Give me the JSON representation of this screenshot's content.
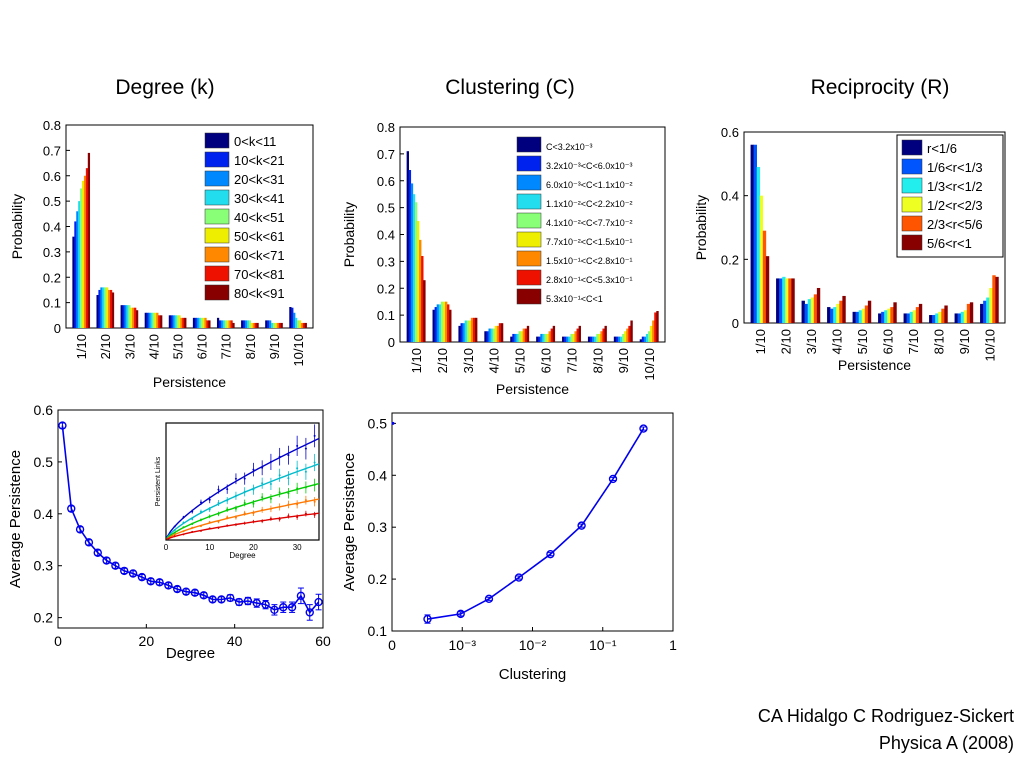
{
  "titles": {
    "degree": "Degree (k)",
    "clustering": "Clustering (C)",
    "reciprocity": "Reciprocity (R)"
  },
  "credit": {
    "line1": "CA Hidalgo C Rodriguez-Sickert",
    "line2": "Physica A (2008)"
  },
  "chart_data": [
    {
      "id": "degree_hist",
      "type": "bar",
      "xlabel": "Persistence",
      "ylabel": "Probability",
      "ylim": [
        0,
        0.8
      ],
      "yticks": [
        "0",
        "0.1",
        "0.2",
        "0.3",
        "0.4",
        "0.5",
        "0.6",
        "0.7",
        "0.8"
      ],
      "categories": [
        "1/10",
        "2/10",
        "3/10",
        "4/10",
        "5/10",
        "6/10",
        "7/10",
        "8/10",
        "9/10",
        "10/10"
      ],
      "legend_position": "top-right",
      "series": [
        {
          "name": "0<k<11",
          "color": "#00007f",
          "values": [
            0.36,
            0.13,
            0.09,
            0.06,
            0.05,
            0.04,
            0.04,
            0.03,
            0.03,
            0.11
          ]
        },
        {
          "name": "10<k<21",
          "color": "#0022ee",
          "values": [
            0.42,
            0.15,
            0.09,
            0.06,
            0.05,
            0.04,
            0.03,
            0.03,
            0.03,
            0.08
          ]
        },
        {
          "name": "20<k<31",
          "color": "#0088ff",
          "values": [
            0.46,
            0.16,
            0.09,
            0.06,
            0.05,
            0.04,
            0.03,
            0.03,
            0.03,
            0.06
          ]
        },
        {
          "name": "30<k<41",
          "color": "#22ddee",
          "values": [
            0.5,
            0.16,
            0.09,
            0.06,
            0.05,
            0.04,
            0.03,
            0.03,
            0.02,
            0.04
          ]
        },
        {
          "name": "40<k<51",
          "color": "#88ff77",
          "values": [
            0.55,
            0.16,
            0.09,
            0.06,
            0.05,
            0.04,
            0.03,
            0.03,
            0.02,
            0.03
          ]
        },
        {
          "name": "50<k<61",
          "color": "#eeee00",
          "values": [
            0.58,
            0.16,
            0.08,
            0.06,
            0.05,
            0.04,
            0.03,
            0.02,
            0.02,
            0.03
          ]
        },
        {
          "name": "60<k<71",
          "color": "#ff8800",
          "values": [
            0.6,
            0.15,
            0.08,
            0.06,
            0.04,
            0.04,
            0.03,
            0.02,
            0.02,
            0.02
          ]
        },
        {
          "name": "70<k<81",
          "color": "#ee1100",
          "values": [
            0.63,
            0.15,
            0.08,
            0.05,
            0.04,
            0.03,
            0.03,
            0.02,
            0.02,
            0.02
          ]
        },
        {
          "name": "80<k<91",
          "color": "#880000",
          "values": [
            0.69,
            0.14,
            0.07,
            0.05,
            0.04,
            0.03,
            0.02,
            0.02,
            0.02,
            0.02
          ]
        }
      ]
    },
    {
      "id": "clustering_hist",
      "type": "bar",
      "xlabel": "Persistence",
      "ylabel": "Probability",
      "ylim": [
        0,
        0.8
      ],
      "yticks": [
        "0",
        "0.1",
        "0.2",
        "0.3",
        "0.4",
        "0.5",
        "0.6",
        "0.7",
        "0.8"
      ],
      "categories": [
        "1/10",
        "2/10",
        "3/10",
        "4/10",
        "5/10",
        "6/10",
        "7/10",
        "8/10",
        "9/10",
        "10/10"
      ],
      "legend_position": "top-right",
      "series": [
        {
          "name": "C<3.2x10⁻³",
          "color": "#00007f",
          "values": [
            0.71,
            0.12,
            0.06,
            0.04,
            0.02,
            0.02,
            0.02,
            0.02,
            0.02,
            0.01
          ]
        },
        {
          "name": "3.2x10⁻³<C<6.0x10⁻³",
          "color": "#0022ee",
          "values": [
            0.64,
            0.13,
            0.07,
            0.04,
            0.03,
            0.02,
            0.02,
            0.02,
            0.02,
            0.02
          ]
        },
        {
          "name": "6.0x10⁻³<C<1.1x10⁻²",
          "color": "#0088ff",
          "values": [
            0.59,
            0.14,
            0.07,
            0.05,
            0.03,
            0.03,
            0.02,
            0.02,
            0.02,
            0.02
          ]
        },
        {
          "name": "1.1x10⁻²<C<2.2x10⁻²",
          "color": "#22ddee",
          "values": [
            0.55,
            0.14,
            0.08,
            0.05,
            0.03,
            0.03,
            0.02,
            0.02,
            0.02,
            0.03
          ]
        },
        {
          "name": "4.1x10⁻²<C<7.7x10⁻²",
          "color": "#88ff77",
          "values": [
            0.52,
            0.15,
            0.08,
            0.05,
            0.04,
            0.03,
            0.03,
            0.03,
            0.03,
            0.04
          ]
        },
        {
          "name": "7.7x10⁻²<C<1.5x10⁻¹",
          "color": "#eeee00",
          "values": [
            0.45,
            0.15,
            0.08,
            0.06,
            0.04,
            0.03,
            0.03,
            0.03,
            0.04,
            0.06
          ]
        },
        {
          "name": "1.5x10⁻¹<C<2.8x10⁻¹",
          "color": "#ff8800",
          "values": [
            0.38,
            0.15,
            0.09,
            0.06,
            0.05,
            0.04,
            0.04,
            0.04,
            0.05,
            0.08
          ]
        },
        {
          "name": "2.8x10⁻¹<C<5.3x10⁻¹",
          "color": "#ee1100",
          "values": [
            0.32,
            0.14,
            0.09,
            0.07,
            0.05,
            0.05,
            0.05,
            0.05,
            0.06,
            0.11
          ]
        },
        {
          "name": "5.3x10⁻¹<C<1",
          "color": "#880000",
          "values": [
            0.23,
            0.12,
            0.09,
            0.07,
            0.06,
            0.06,
            0.06,
            0.06,
            0.08,
            0.14
          ]
        }
      ]
    },
    {
      "id": "reciprocity_hist",
      "type": "bar",
      "xlabel": "Persistence",
      "ylabel": "Probability",
      "ylim": [
        0,
        0.6
      ],
      "yticks": [
        "0",
        "0.2",
        "0.4",
        "0.6"
      ],
      "categories": [
        "1/10",
        "2/10",
        "3/10",
        "4/10",
        "5/10",
        "6/10",
        "7/10",
        "8/10",
        "9/10",
        "10/10"
      ],
      "legend_position": "top-right",
      "series": [
        {
          "name": "r<1/6",
          "color": "#00007f",
          "values": [
            0.56,
            0.14,
            0.07,
            0.05,
            0.035,
            0.03,
            0.03,
            0.025,
            0.03,
            0.06
          ]
        },
        {
          "name": "1/6<r<1/3",
          "color": "#0055ff",
          "values": [
            0.56,
            0.14,
            0.06,
            0.045,
            0.035,
            0.035,
            0.03,
            0.025,
            0.03,
            0.07
          ]
        },
        {
          "name": "1/3<r<1/2",
          "color": "#22eeee",
          "values": [
            0.49,
            0.145,
            0.075,
            0.05,
            0.04,
            0.04,
            0.035,
            0.03,
            0.035,
            0.08
          ]
        },
        {
          "name": "1/2<r<2/3",
          "color": "#eeff22",
          "values": [
            0.4,
            0.14,
            0.08,
            0.06,
            0.045,
            0.045,
            0.04,
            0.035,
            0.04,
            0.11
          ]
        },
        {
          "name": "2/3<r<5/6",
          "color": "#ff5500",
          "values": [
            0.29,
            0.14,
            0.09,
            0.07,
            0.055,
            0.05,
            0.05,
            0.045,
            0.06,
            0.15
          ]
        },
        {
          "name": "5/6<r<1",
          "color": "#880000",
          "values": [
            0.21,
            0.14,
            0.11,
            0.085,
            0.07,
            0.065,
            0.06,
            0.055,
            0.065,
            0.145
          ]
        }
      ]
    },
    {
      "id": "degree_persistence",
      "type": "line",
      "xlabel": "Degree",
      "ylabel": "Average Persistence",
      "xlim": [
        0,
        60
      ],
      "ylim": [
        0.18,
        0.6
      ],
      "xticks": [
        0,
        20,
        40,
        60
      ],
      "yticks": [
        0.2,
        0.3,
        0.4,
        0.5,
        0.6
      ],
      "color": "#0000ee",
      "x": [
        1,
        3,
        5,
        7,
        9,
        11,
        13,
        15,
        17,
        19,
        21,
        23,
        25,
        27,
        29,
        31,
        33,
        35,
        37,
        39,
        41,
        43,
        45,
        47,
        49,
        51,
        53,
        55,
        57,
        59
      ],
      "y": [
        0.57,
        0.41,
        0.37,
        0.345,
        0.325,
        0.31,
        0.3,
        0.29,
        0.285,
        0.278,
        0.27,
        0.268,
        0.262,
        0.255,
        0.25,
        0.248,
        0.243,
        0.235,
        0.235,
        0.238,
        0.23,
        0.232,
        0.228,
        0.225,
        0.215,
        0.22,
        0.22,
        0.242,
        0.21,
        0.23
      ],
      "error": [
        0.005,
        0.005,
        0.005,
        0.005,
        0.005,
        0.005,
        0.005,
        0.005,
        0.005,
        0.005,
        0.005,
        0.005,
        0.005,
        0.005,
        0.005,
        0.005,
        0.005,
        0.005,
        0.005,
        0.006,
        0.006,
        0.007,
        0.008,
        0.008,
        0.01,
        0.01,
        0.01,
        0.015,
        0.015,
        0.015
      ],
      "inset": {
        "xlabel": "Degree",
        "ylabel": "Persistent Links",
        "xlim": [
          0,
          35
        ],
        "xticks": [
          0,
          10,
          20,
          30
        ],
        "ylim": [
          0,
          5
        ],
        "series": [
          {
            "color": "#0000cc",
            "a": 0.36,
            "p": 0.7
          },
          {
            "color": "#00bbcc",
            "a": 0.27,
            "p": 0.7
          },
          {
            "color": "#00cc00",
            "a": 0.2,
            "p": 0.7
          },
          {
            "color": "#ff7700",
            "a": 0.145,
            "p": 0.7
          },
          {
            "color": "#dd0000",
            "a": 0.095,
            "p": 0.7
          }
        ]
      }
    },
    {
      "id": "clustering_persistence",
      "type": "line",
      "xlabel": "Clustering",
      "ylabel": "Average Persistence",
      "xscale": "log",
      "xlim": [
        0.0001,
        1
      ],
      "ylim": [
        0.1,
        0.52
      ],
      "yticks": [
        0.1,
        0.2,
        0.3,
        0.4,
        0.5
      ],
      "xtick_labels": [
        "0",
        "10⁻³",
        "10⁻²",
        "10⁻¹",
        "1"
      ],
      "color": "#0000ee",
      "x": [
        0.00032,
        0.00095,
        0.0024,
        0.0064,
        0.018,
        0.05,
        0.14,
        0.38
      ],
      "y": [
        0.123,
        0.133,
        0.162,
        0.203,
        0.248,
        0.303,
        0.393,
        0.49
      ],
      "error": [
        0.008,
        0.004,
        0.003,
        0.003,
        0.003,
        0.003,
        0.003,
        0.003
      ]
    }
  ]
}
